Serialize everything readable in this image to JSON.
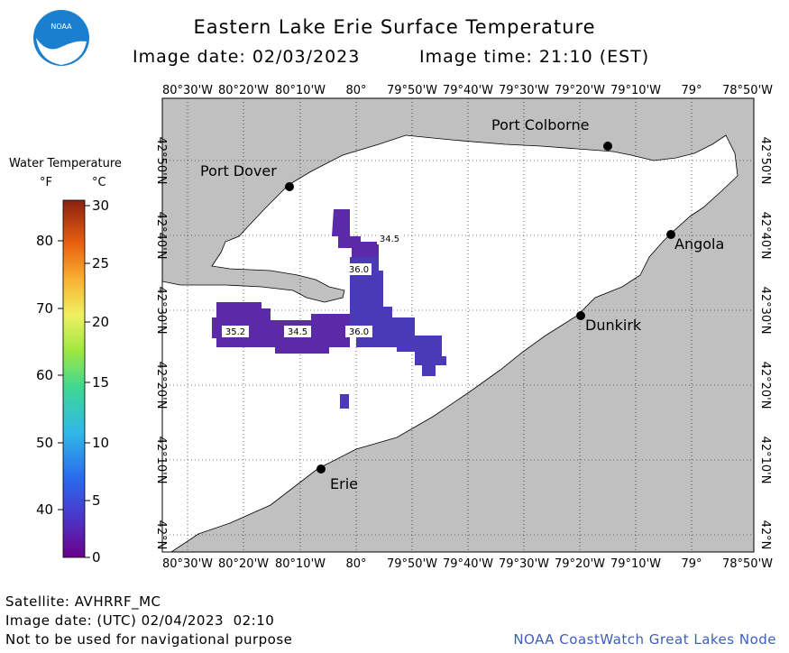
{
  "header": {
    "title": "Eastern Lake Erie Surface Temperature",
    "image_date_label": "Image date: 02/03/2023",
    "image_time_label": "Image time: 21:10 (EST)",
    "logo_text": "NOAA"
  },
  "legend": {
    "title": "Water Temperature",
    "unit_f": "°F",
    "unit_c": "°C",
    "f_ticks": [
      "80",
      "70",
      "60",
      "50",
      "40"
    ],
    "c_ticks": [
      "30",
      "25",
      "20",
      "15",
      "10",
      "5",
      "0"
    ]
  },
  "map": {
    "lon_labels": [
      "80°30'W",
      "80°20'W",
      "80°10'W",
      "80°",
      "79°50'W",
      "79°40'W",
      "79°30'W",
      "79°20'W",
      "79°10'W",
      "79°",
      "78°50'W"
    ],
    "lat_labels": [
      "42°50'N",
      "42°40'N",
      "42°30'N",
      "42°20'N",
      "42°10'N",
      "42°N"
    ],
    "cities": [
      {
        "id": "port-colborne",
        "name": "Port Colborne"
      },
      {
        "id": "port-dover",
        "name": "Port Dover"
      },
      {
        "id": "angola",
        "name": "Angola"
      },
      {
        "id": "dunkirk",
        "name": "Dunkirk"
      },
      {
        "id": "erie",
        "name": "Erie"
      }
    ],
    "temp_labels": [
      "34.5",
      "36.0",
      "35.2",
      "34.5",
      "36.0"
    ],
    "colors": {
      "land": "#c0c0c0",
      "water": "#ffffff",
      "ice_temp_dark": "#5a2aa8",
      "ice_temp_light": "#4a3ab8"
    }
  },
  "footer": {
    "satellite": "Satellite: AVHRRF_MC",
    "utc_date": "Image date: (UTC) 02/04/2023  02:10",
    "disclaimer": "Not to be used for navigational purpose",
    "credit": "NOAA CoastWatch Great Lakes Node"
  }
}
